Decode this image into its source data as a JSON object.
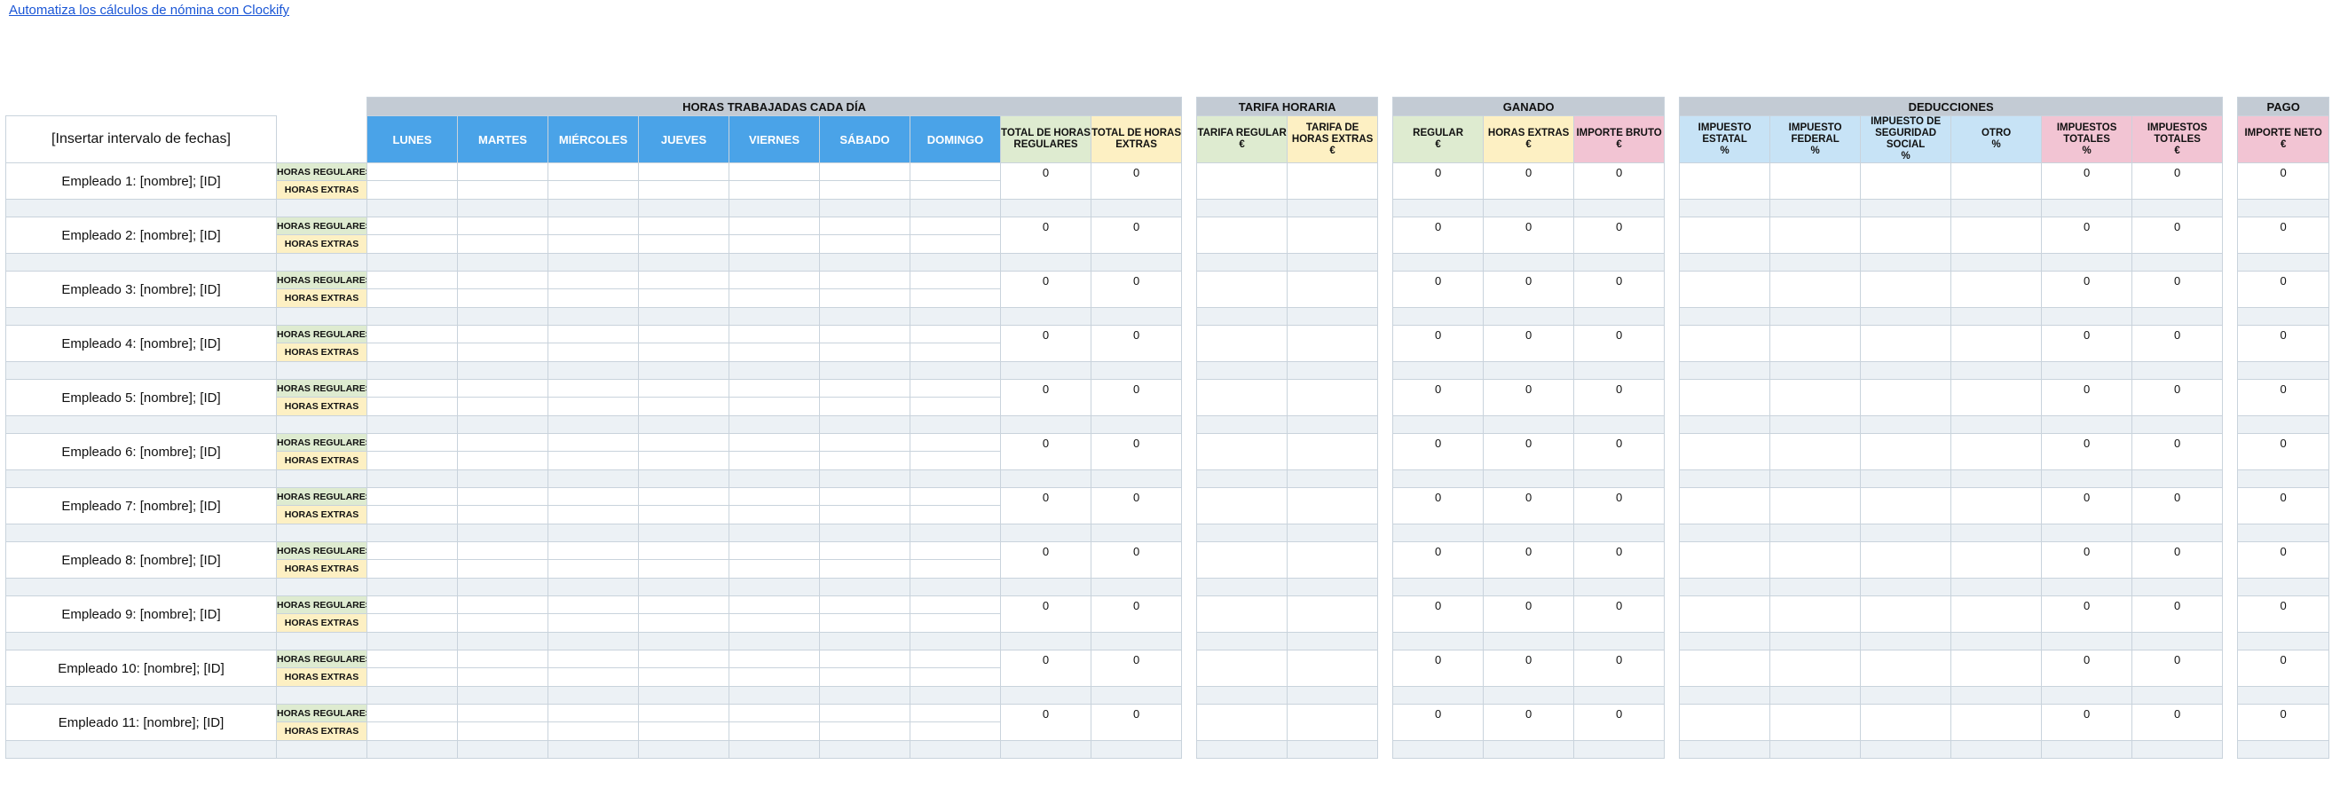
{
  "top_link": "Automatiza los cálculos de nómina con Clockify",
  "date_range": "[Insertar intervalo de fechas]",
  "sections": {
    "hours": "HORAS TRABAJADAS CADA DÍA",
    "rate": "TARIFA HORARIA",
    "earned": "GANADO",
    "deductions": "DEDUCCIONES",
    "payment": "PAGO"
  },
  "days": [
    "LUNES",
    "MARTES",
    "MIÉRCOLES",
    "JUEVES",
    "VIERNES",
    "SÁBADO",
    "DOMINGO"
  ],
  "hours_totals": [
    "TOTAL DE HORAS REGULARES",
    "TOTAL DE HORAS EXTRAS"
  ],
  "rate_cols": [
    {
      "label": "TARIFA REGULAR",
      "unit": "€"
    },
    {
      "label": "TARIFA DE HORAS EXTRAS",
      "unit": "€"
    }
  ],
  "earned_cols": [
    {
      "label": "REGULAR",
      "unit": "€"
    },
    {
      "label": "HORAS EXTRAS",
      "unit": "€"
    },
    {
      "label": "IMPORTE BRUTO",
      "unit": "€"
    }
  ],
  "deduction_cols": [
    {
      "label": "IMPUESTO ESTATAL",
      "unit": "%"
    },
    {
      "label": "IMPUESTO FEDERAL",
      "unit": "%"
    },
    {
      "label": "IMPUESTO DE SEGURIDAD SOCIAL",
      "unit": "%"
    },
    {
      "label": "OTRO",
      "unit": "%"
    },
    {
      "label": "IMPUESTOS TOTALES",
      "unit": "%"
    },
    {
      "label": "IMPUESTOS TOTALES",
      "unit": "€"
    }
  ],
  "payment_cols": [
    {
      "label": "IMPORTE NETO",
      "unit": "€"
    }
  ],
  "row_types": {
    "regular": "HORAS REGULARES",
    "extra": "HORAS EXTRAS"
  },
  "employees": [
    {
      "name": "Empleado 1: [nombre]; [ID]",
      "total_reg": "0",
      "total_ext": "0",
      "earned_reg": "0",
      "earned_ext": "0",
      "gross": "0",
      "tax_pct": "0",
      "tax_eur": "0",
      "net": "0"
    },
    {
      "name": "Empleado 2: [nombre]; [ID]",
      "total_reg": "0",
      "total_ext": "0",
      "earned_reg": "0",
      "earned_ext": "0",
      "gross": "0",
      "tax_pct": "0",
      "tax_eur": "0",
      "net": "0"
    },
    {
      "name": "Empleado 3: [nombre]; [ID]",
      "total_reg": "0",
      "total_ext": "0",
      "earned_reg": "0",
      "earned_ext": "0",
      "gross": "0",
      "tax_pct": "0",
      "tax_eur": "0",
      "net": "0"
    },
    {
      "name": "Empleado 4: [nombre]; [ID]",
      "total_reg": "0",
      "total_ext": "0",
      "earned_reg": "0",
      "earned_ext": "0",
      "gross": "0",
      "tax_pct": "0",
      "tax_eur": "0",
      "net": "0"
    },
    {
      "name": "Empleado 5: [nombre]; [ID]",
      "total_reg": "0",
      "total_ext": "0",
      "earned_reg": "0",
      "earned_ext": "0",
      "gross": "0",
      "tax_pct": "0",
      "tax_eur": "0",
      "net": "0"
    },
    {
      "name": "Empleado 6: [nombre]; [ID]",
      "total_reg": "0",
      "total_ext": "0",
      "earned_reg": "0",
      "earned_ext": "0",
      "gross": "0",
      "tax_pct": "0",
      "tax_eur": "0",
      "net": "0"
    },
    {
      "name": "Empleado 7: [nombre]; [ID]",
      "total_reg": "0",
      "total_ext": "0",
      "earned_reg": "0",
      "earned_ext": "0",
      "gross": "0",
      "tax_pct": "0",
      "tax_eur": "0",
      "net": "0"
    },
    {
      "name": "Empleado 8: [nombre]; [ID]",
      "total_reg": "0",
      "total_ext": "0",
      "earned_reg": "0",
      "earned_ext": "0",
      "gross": "0",
      "tax_pct": "0",
      "tax_eur": "0",
      "net": "0"
    },
    {
      "name": "Empleado 9: [nombre]; [ID]",
      "total_reg": "0",
      "total_ext": "0",
      "earned_reg": "0",
      "earned_ext": "0",
      "gross": "0",
      "tax_pct": "0",
      "tax_eur": "0",
      "net": "0"
    },
    {
      "name": "Empleado 10: [nombre]; [ID]",
      "total_reg": "0",
      "total_ext": "0",
      "earned_reg": "0",
      "earned_ext": "0",
      "gross": "0",
      "tax_pct": "0",
      "tax_eur": "0",
      "net": "0"
    },
    {
      "name": "Empleado 11: [nombre]; [ID]",
      "total_reg": "0",
      "total_ext": "0",
      "earned_reg": "0",
      "earned_ext": "0",
      "gross": "0",
      "tax_pct": "0",
      "tax_eur": "0",
      "net": "0"
    }
  ]
}
